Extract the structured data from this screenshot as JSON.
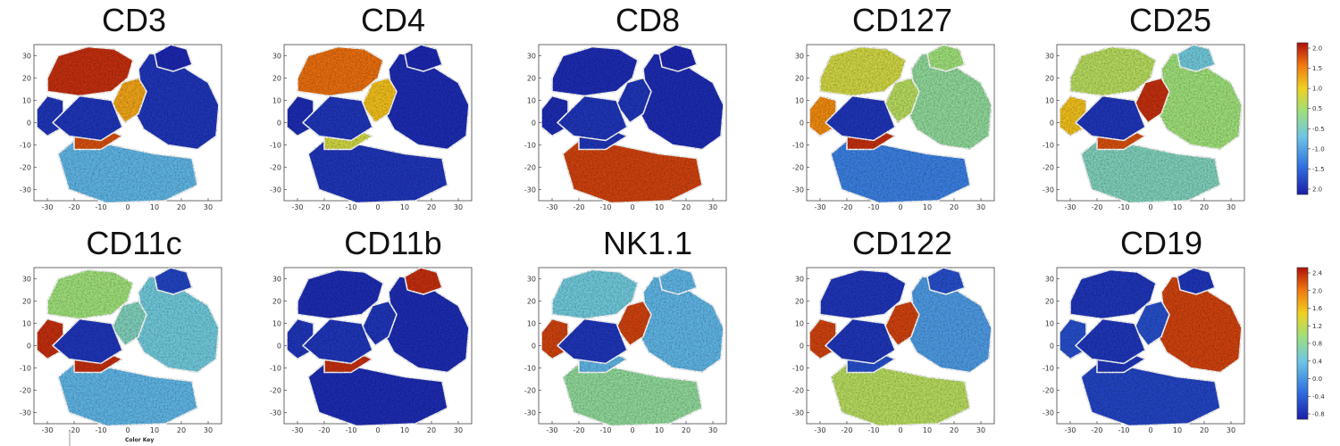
{
  "colors": {
    "low": "#1a1ea8",
    "lowmid": "#2f6fe0",
    "mid": "#6cc6e6",
    "midhigh": "#9fe07a",
    "high": "#f0d020",
    "higher": "#f07a10",
    "max": "#b0100a"
  },
  "chart_data": [
    {
      "type": "heatmap",
      "title": "CD3",
      "xlabel": "",
      "ylabel": "",
      "xlim": [
        -35,
        35
      ],
      "ylim": [
        -35,
        35
      ],
      "xticks": [
        "-30",
        "-20",
        "-10",
        "0",
        "10",
        "20",
        "30"
      ],
      "yticks": [
        "30",
        "20",
        "10",
        "0",
        "-10",
        "-20",
        "-30"
      ],
      "cluster_levels": {
        "A": 0.95,
        "B": 0.05,
        "C": 0.02,
        "D": 0.75,
        "E": 0.3,
        "F": 0.05,
        "G": 0.9
      }
    },
    {
      "type": "heatmap",
      "title": "CD4",
      "xlabel": "",
      "ylabel": "",
      "xlim": [
        -35,
        35
      ],
      "ylim": [
        -35,
        35
      ],
      "xticks": [
        "-30",
        "-20",
        "-10",
        "0",
        "10",
        "20",
        "30"
      ],
      "yticks": [
        "30",
        "20",
        "10",
        "0",
        "-10",
        "-20",
        "-30"
      ],
      "cluster_levels": {
        "A": 0.85,
        "B": 0.03,
        "C": 0.02,
        "D": 0.7,
        "E": 0.05,
        "F": 0.03,
        "G": 0.6
      }
    },
    {
      "type": "heatmap",
      "title": "CD8",
      "xlabel": "",
      "ylabel": "",
      "xlim": [
        -35,
        35
      ],
      "ylim": [
        -35,
        35
      ],
      "xticks": [
        "-30",
        "-20",
        "-10",
        "0",
        "10",
        "20",
        "30"
      ],
      "yticks": [
        "30",
        "20",
        "10",
        "0",
        "-10",
        "-20",
        "-30"
      ],
      "cluster_levels": {
        "A": 0.03,
        "B": 0.03,
        "C": 0.02,
        "D": 0.05,
        "E": 0.92,
        "F": 0.03,
        "G": 0.05
      }
    },
    {
      "type": "heatmap",
      "title": "CD127",
      "xlabel": "",
      "ylabel": "",
      "xlim": [
        -35,
        35
      ],
      "ylim": [
        -35,
        35
      ],
      "xticks": [
        "-30",
        "-20",
        "-10",
        "0",
        "10",
        "20",
        "30"
      ],
      "yticks": [
        "30",
        "20",
        "10",
        "0",
        "-10",
        "-20",
        "-30"
      ],
      "cluster_levels": {
        "A": 0.6,
        "B": 0.45,
        "C": 0.5,
        "D": 0.55,
        "E": 0.2,
        "F": 0.8,
        "G": 0.95
      }
    },
    {
      "type": "heatmap",
      "title": "CD25",
      "xlabel": "",
      "ylabel": "",
      "xlim": [
        -35,
        35
      ],
      "ylim": [
        -35,
        35
      ],
      "xticks": [
        "-30",
        "-20",
        "-10",
        "0",
        "10",
        "20",
        "30"
      ],
      "yticks": [
        "30",
        "20",
        "10",
        "0",
        "-10",
        "-20",
        "-30"
      ],
      "cluster_levels": {
        "A": 0.55,
        "B": 0.5,
        "C": 0.35,
        "D": 0.95,
        "E": 0.4,
        "F": 0.7,
        "G": 0.9
      }
    },
    {
      "type": "heatmap",
      "title": "CD11c",
      "xlabel": "",
      "ylabel": "",
      "xlim": [
        -35,
        35
      ],
      "ylim": [
        -35,
        35
      ],
      "xticks": [
        "-30",
        "-20",
        "-10",
        "0",
        "10",
        "20",
        "30"
      ],
      "yticks": [
        "30",
        "20",
        "10",
        "0",
        "-10",
        "-20",
        "-30"
      ],
      "cluster_levels": {
        "A": 0.5,
        "B": 0.35,
        "C": 0.08,
        "D": 0.4,
        "E": 0.3,
        "F": 0.95,
        "G": 0.95
      }
    },
    {
      "type": "heatmap",
      "title": "CD11b",
      "xlabel": "",
      "ylabel": "",
      "xlim": [
        -35,
        35
      ],
      "ylim": [
        -35,
        35
      ],
      "xticks": [
        "-30",
        "-20",
        "-10",
        "0",
        "10",
        "20",
        "30"
      ],
      "yticks": [
        "30",
        "20",
        "10",
        "0",
        "-10",
        "-20",
        "-30"
      ],
      "cluster_levels": {
        "A": 0.03,
        "B": 0.03,
        "C": 0.95,
        "D": 0.05,
        "E": 0.03,
        "F": 0.05,
        "G": 0.95
      }
    },
    {
      "type": "heatmap",
      "title": "NK1.1",
      "xlabel": "",
      "ylabel": "",
      "xlim": [
        -35,
        35
      ],
      "ylim": [
        -35,
        35
      ],
      "xticks": [
        "-30",
        "-20",
        "-10",
        "0",
        "10",
        "20",
        "30"
      ],
      "yticks": [
        "30",
        "20",
        "10",
        "0",
        "-10",
        "-20",
        "-30"
      ],
      "cluster_levels": {
        "A": 0.35,
        "B": 0.3,
        "C": 0.3,
        "D": 0.92,
        "E": 0.45,
        "F": 0.92,
        "G": 0.3
      }
    },
    {
      "type": "heatmap",
      "title": "CD122",
      "xlabel": "",
      "ylabel": "",
      "xlim": [
        -35,
        35
      ],
      "ylim": [
        -35,
        35
      ],
      "xticks": [
        "-30",
        "-20",
        "-10",
        "0",
        "10",
        "20",
        "30"
      ],
      "yticks": [
        "30",
        "20",
        "10",
        "0",
        "-10",
        "-20",
        "-30"
      ],
      "cluster_levels": {
        "A": 0.05,
        "B": 0.25,
        "C": 0.1,
        "D": 0.92,
        "E": 0.55,
        "F": 0.92,
        "G": 0.1
      }
    },
    {
      "type": "heatmap",
      "title": "CD19",
      "xlabel": "",
      "ylabel": "",
      "xlim": [
        -35,
        35
      ],
      "ylim": [
        -35,
        35
      ],
      "xticks": [
        "-30",
        "-20",
        "-10",
        "0",
        "10",
        "20",
        "30"
      ],
      "yticks": [
        "30",
        "20",
        "10",
        "0",
        "-10",
        "-20",
        "-30"
      ],
      "cluster_levels": {
        "A": 0.05,
        "B": 0.92,
        "C": 0.05,
        "D": 0.1,
        "E": 0.08,
        "F": 0.1,
        "G": 0.05
      }
    }
  ],
  "colorbars": [
    {
      "name": "colorbar-top",
      "ticks": [
        "2.0",
        "1.5",
        "1.0",
        "0.5",
        "-0.5",
        "-1.0",
        "-1.5",
        "2.0"
      ]
    },
    {
      "name": "colorbar-bottom",
      "ticks": [
        "2.4",
        "2.0",
        "1.6",
        "1.2",
        "0.8",
        "0.4",
        "0.0",
        "-0.4",
        "-0.8"
      ]
    }
  ],
  "color_key": {
    "label": "Color Key"
  }
}
